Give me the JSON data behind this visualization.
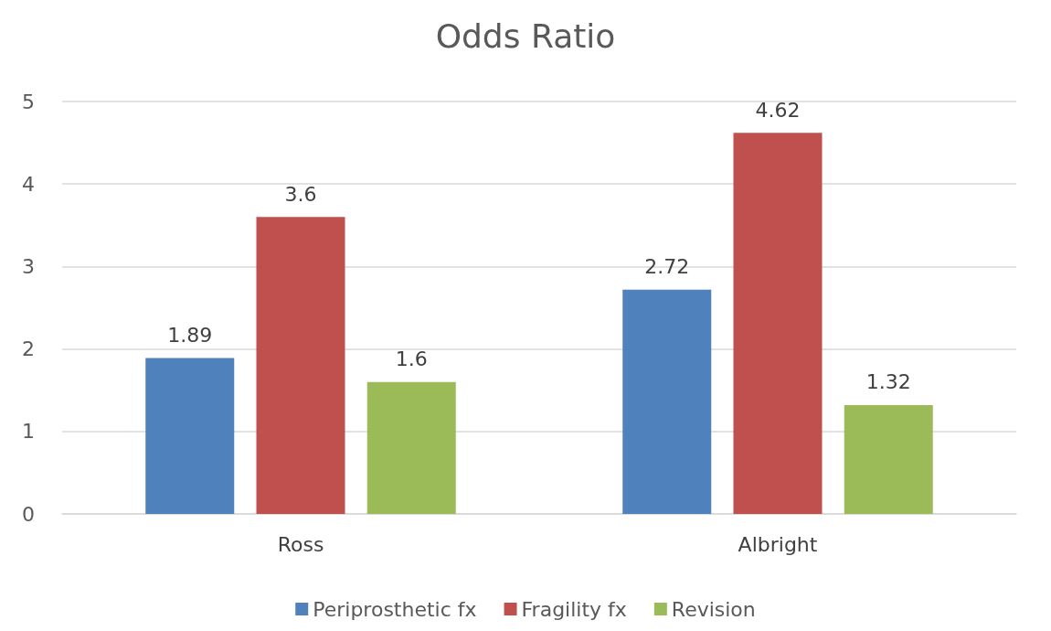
{
  "chart_data": {
    "type": "bar",
    "title": "Odds Ratio",
    "categories": [
      "Ross",
      "Albright"
    ],
    "series": [
      {
        "name": "Periprosthetic fx",
        "color": "#4f81bd",
        "values": [
          1.89,
          2.72
        ]
      },
      {
        "name": "Fragility fx",
        "color": "#c0504d",
        "values": [
          3.6,
          4.62
        ]
      },
      {
        "name": "Revision",
        "color": "#9bbb59",
        "values": [
          1.6,
          1.32
        ]
      }
    ],
    "ylim": [
      0,
      5
    ],
    "yticks": [
      0,
      1,
      2,
      3,
      4,
      5
    ],
    "grid": "y",
    "legend": "bottom",
    "data_labels": true
  }
}
